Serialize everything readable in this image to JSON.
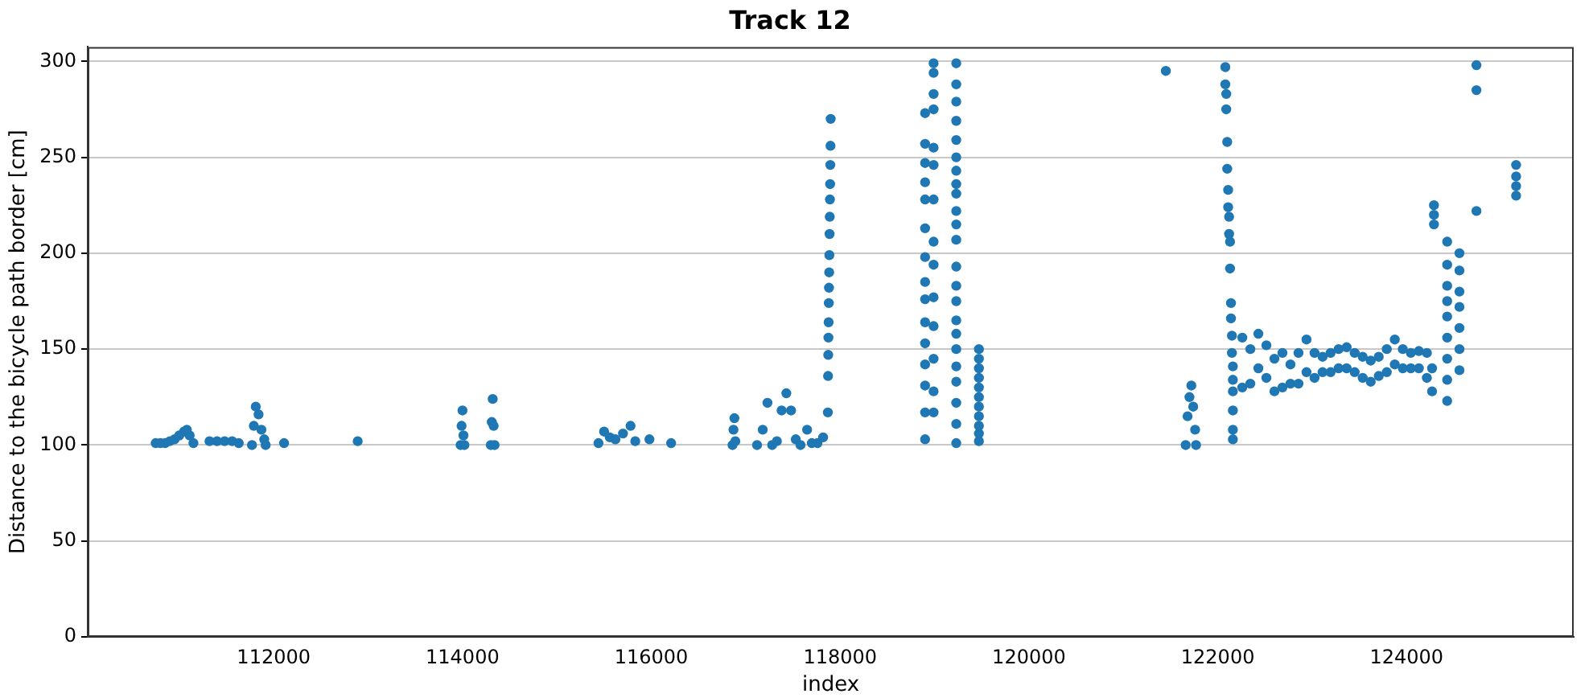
{
  "chart_data": {
    "type": "scatter",
    "title": "Track 12",
    "xlabel": "index",
    "ylabel": "Distance to the bicycle path border [cm]",
    "xlim": [
      110030,
      125770
    ],
    "ylim": [
      0,
      307.5
    ],
    "xticks": [
      112000,
      114000,
      116000,
      118000,
      120000,
      122000,
      124000
    ],
    "yticks": [
      0,
      50,
      100,
      150,
      200,
      250,
      300
    ],
    "grid": "y",
    "legend": false,
    "marker": "circle",
    "color": "#1f77b4",
    "x": [
      110750,
      110800,
      110850,
      110900,
      110950,
      111000,
      111050,
      111080,
      111110,
      111150,
      111320,
      111400,
      111480,
      111560,
      111630,
      111770,
      111790,
      111810,
      111840,
      111870,
      111900,
      111915,
      112110,
      112890,
      113980,
      113990,
      114000,
      114010,
      114020,
      114300,
      114310,
      114320,
      114330,
      114340,
      115440,
      115500,
      115560,
      115620,
      115700,
      115780,
      115830,
      115980,
      116210,
      116860,
      116870,
      116880,
      116890,
      117120,
      117180,
      117230,
      117280,
      117330,
      117380,
      117430,
      117480,
      117530,
      117580,
      117650,
      117700,
      117760,
      117820,
      117870,
      117872,
      117874,
      117876,
      117878,
      117880,
      117882,
      117884,
      117886,
      117888,
      117890,
      117892,
      117894,
      117896,
      117898,
      117900,
      118900,
      118900,
      118900,
      118900,
      118900,
      118900,
      118900,
      118900,
      118900,
      118900,
      118900,
      118900,
      118900,
      118900,
      118900,
      118990,
      118990,
      118990,
      118990,
      118990,
      118990,
      118990,
      118990,
      118990,
      118990,
      118990,
      118990,
      118990,
      118990,
      119230,
      119230,
      119230,
      119230,
      119230,
      119230,
      119230,
      119230,
      119230,
      119230,
      119230,
      119230,
      119230,
      119230,
      119230,
      119230,
      119230,
      119230,
      119230,
      119230,
      119230,
      119230,
      119230,
      119470,
      119470,
      119470,
      119470,
      119470,
      119470,
      119470,
      119470,
      119470,
      119470,
      119470,
      121450,
      121660,
      121680,
      121700,
      121720,
      121740,
      121760,
      121770,
      122080,
      122080,
      122090,
      122090,
      122100,
      122100,
      122110,
      122110,
      122120,
      122120,
      122130,
      122130,
      122140,
      122140,
      122150,
      122150,
      122160,
      122160,
      122160,
      122160,
      122160,
      122160,
      122260,
      122260,
      122345,
      122345,
      122430,
      122430,
      122515,
      122515,
      122600,
      122600,
      122685,
      122685,
      122770,
      122770,
      122855,
      122855,
      122940,
      122940,
      123025,
      123025,
      123110,
      123110,
      123195,
      123195,
      123280,
      123280,
      123365,
      123365,
      123450,
      123450,
      123535,
      123535,
      123620,
      123620,
      123705,
      123705,
      123790,
      123790,
      123875,
      123875,
      123960,
      123960,
      124045,
      124045,
      124130,
      124130,
      124215,
      124215,
      124270,
      124270,
      124290,
      124290,
      124290,
      124430,
      124430,
      124430,
      124430,
      124430,
      124430,
      124430,
      124430,
      124430,
      124560,
      124560,
      124560,
      124560,
      124560,
      124560,
      124560,
      124740,
      124740,
      124740,
      125160,
      125160,
      125160,
      125160
    ],
    "values": [
      101,
      101,
      101,
      102,
      103,
      105,
      107,
      108,
      105,
      101,
      102,
      102,
      102,
      102,
      101,
      100,
      110,
      120,
      116,
      108,
      103,
      100,
      101,
      102,
      100,
      110,
      118,
      105,
      100,
      100,
      112,
      124,
      110,
      100,
      101,
      107,
      104,
      103,
      106,
      110,
      102,
      103,
      101,
      100,
      108,
      114,
      102,
      100,
      108,
      122,
      100,
      102,
      118,
      127,
      118,
      103,
      100,
      108,
      101,
      101,
      104,
      117,
      136,
      147,
      156,
      164,
      174,
      182,
      190,
      199,
      210,
      219,
      228,
      236,
      246,
      256,
      270,
      273,
      257,
      247,
      237,
      228,
      213,
      198,
      185,
      176,
      164,
      153,
      142,
      131,
      117,
      103,
      299,
      294,
      283,
      275,
      255,
      246,
      228,
      206,
      194,
      177,
      162,
      145,
      128,
      117,
      299,
      288,
      279,
      269,
      259,
      250,
      243,
      236,
      231,
      222,
      215,
      207,
      193,
      183,
      175,
      165,
      158,
      150,
      141,
      133,
      122,
      111,
      101,
      150,
      145,
      140,
      135,
      130,
      125,
      120,
      115,
      110,
      106,
      102,
      295,
      100,
      115,
      125,
      131,
      120,
      108,
      100,
      297,
      288,
      283,
      275,
      258,
      244,
      233,
      224,
      219,
      210,
      206,
      192,
      174,
      166,
      157,
      148,
      141,
      134,
      128,
      118,
      108,
      103,
      156,
      130,
      150,
      132,
      158,
      140,
      152,
      135,
      145,
      128,
      148,
      130,
      142,
      132,
      148,
      132,
      155,
      138,
      148,
      135,
      146,
      138,
      148,
      138,
      150,
      140,
      151,
      140,
      148,
      138,
      146,
      135,
      144,
      133,
      146,
      136,
      150,
      138,
      155,
      142,
      150,
      140,
      148,
      140,
      149,
      140,
      148,
      135,
      140,
      128,
      225,
      220,
      215,
      206,
      194,
      183,
      175,
      167,
      156,
      145,
      134,
      123,
      200,
      191,
      180,
      172,
      161,
      150,
      139,
      298,
      285,
      222,
      246,
      240,
      235,
      230
    ]
  }
}
